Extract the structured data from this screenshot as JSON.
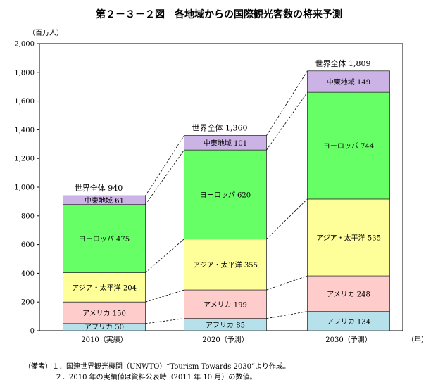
{
  "chart_data": {
    "type": "bar",
    "stacked": true,
    "title": "第２－３－２図　各地域からの国際観光客数の将来予測",
    "ylabel": "（百万人）",
    "xlabel": "（年）",
    "ylim": [
      0,
      2000
    ],
    "yticks": [
      "0",
      "200",
      "400",
      "600",
      "800",
      "1,000",
      "1,200",
      "1,400",
      "1,600",
      "1,800",
      "2,000"
    ],
    "categories": [
      "2010（実績）",
      "2020（予測）",
      "2030（予測）"
    ],
    "series": [
      {
        "name": "アフリカ",
        "color": "#b7e1ea",
        "values": [
          50,
          85,
          134
        ]
      },
      {
        "name": "アメリカ",
        "color": "#ffcccc",
        "values": [
          150,
          199,
          248
        ]
      },
      {
        "name": "アジア・太平洋",
        "color": "#ffff99",
        "values": [
          204,
          355,
          535
        ]
      },
      {
        "name": "ヨーロッパ",
        "color": "#66ff66",
        "values": [
          475,
          620,
          744
        ]
      },
      {
        "name": "中東地域",
        "color": "#ccb3e6",
        "values": [
          61,
          101,
          149
        ]
      }
    ],
    "total_labels": [
      "世界全体 940",
      "世界全体 1,360",
      "世界全体 1,809"
    ],
    "totals": [
      940,
      1360,
      1809
    ]
  },
  "notes": {
    "line1": "（備考）１．国連世界観光機関（UNWTO）“Tourism Towards 2030”より作成。",
    "line2": "２．2010 年の実績値は資料公表時（2011 年 10 月）の数値。"
  }
}
